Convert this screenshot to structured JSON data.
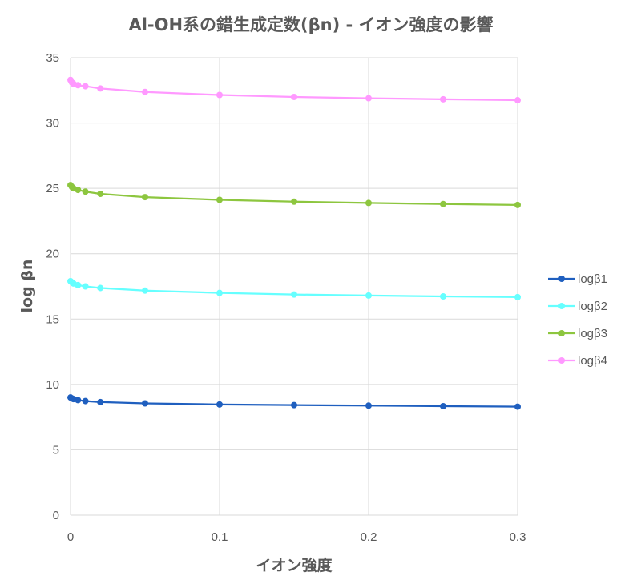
{
  "chart_data": {
    "type": "scatter",
    "title": "Al-OH系の錯生成定数(βn) - イオン強度の影響",
    "xlabel": "イオン強度",
    "ylabel": "log βn",
    "xlim": [
      0,
      0.3
    ],
    "ylim": [
      0,
      35
    ],
    "x_ticks": [
      "0",
      "0.1",
      "0.2",
      "0.3"
    ],
    "y_ticks": [
      "0",
      "5",
      "10",
      "15",
      "20",
      "25",
      "30",
      "35"
    ],
    "grid": true,
    "legend_position": "right",
    "x": [
      0,
      0.001,
      0.002,
      0.005,
      0.01,
      0.02,
      0.05,
      0.1,
      0.15,
      0.2,
      0.25,
      0.3
    ],
    "series": [
      {
        "name": "logβ1",
        "color": "#1f5fbf",
        "values": [
          9.0,
          8.93,
          8.88,
          8.8,
          8.73,
          8.65,
          8.55,
          8.47,
          8.42,
          8.38,
          8.34,
          8.3
        ]
      },
      {
        "name": "logβ2",
        "color": "#66ffff",
        "values": [
          17.9,
          17.8,
          17.72,
          17.6,
          17.5,
          17.38,
          17.18,
          17.0,
          16.88,
          16.8,
          16.73,
          16.68
        ]
      },
      {
        "name": "logβ3",
        "color": "#8dc63f",
        "values": [
          25.25,
          25.1,
          25.0,
          24.88,
          24.75,
          24.58,
          24.33,
          24.12,
          23.98,
          23.88,
          23.8,
          23.73
        ]
      },
      {
        "name": "logβ4",
        "color": "#ff99ff",
        "values": [
          33.3,
          33.1,
          33.0,
          32.9,
          32.82,
          32.65,
          32.38,
          32.15,
          32.0,
          31.9,
          31.82,
          31.75
        ]
      }
    ]
  }
}
